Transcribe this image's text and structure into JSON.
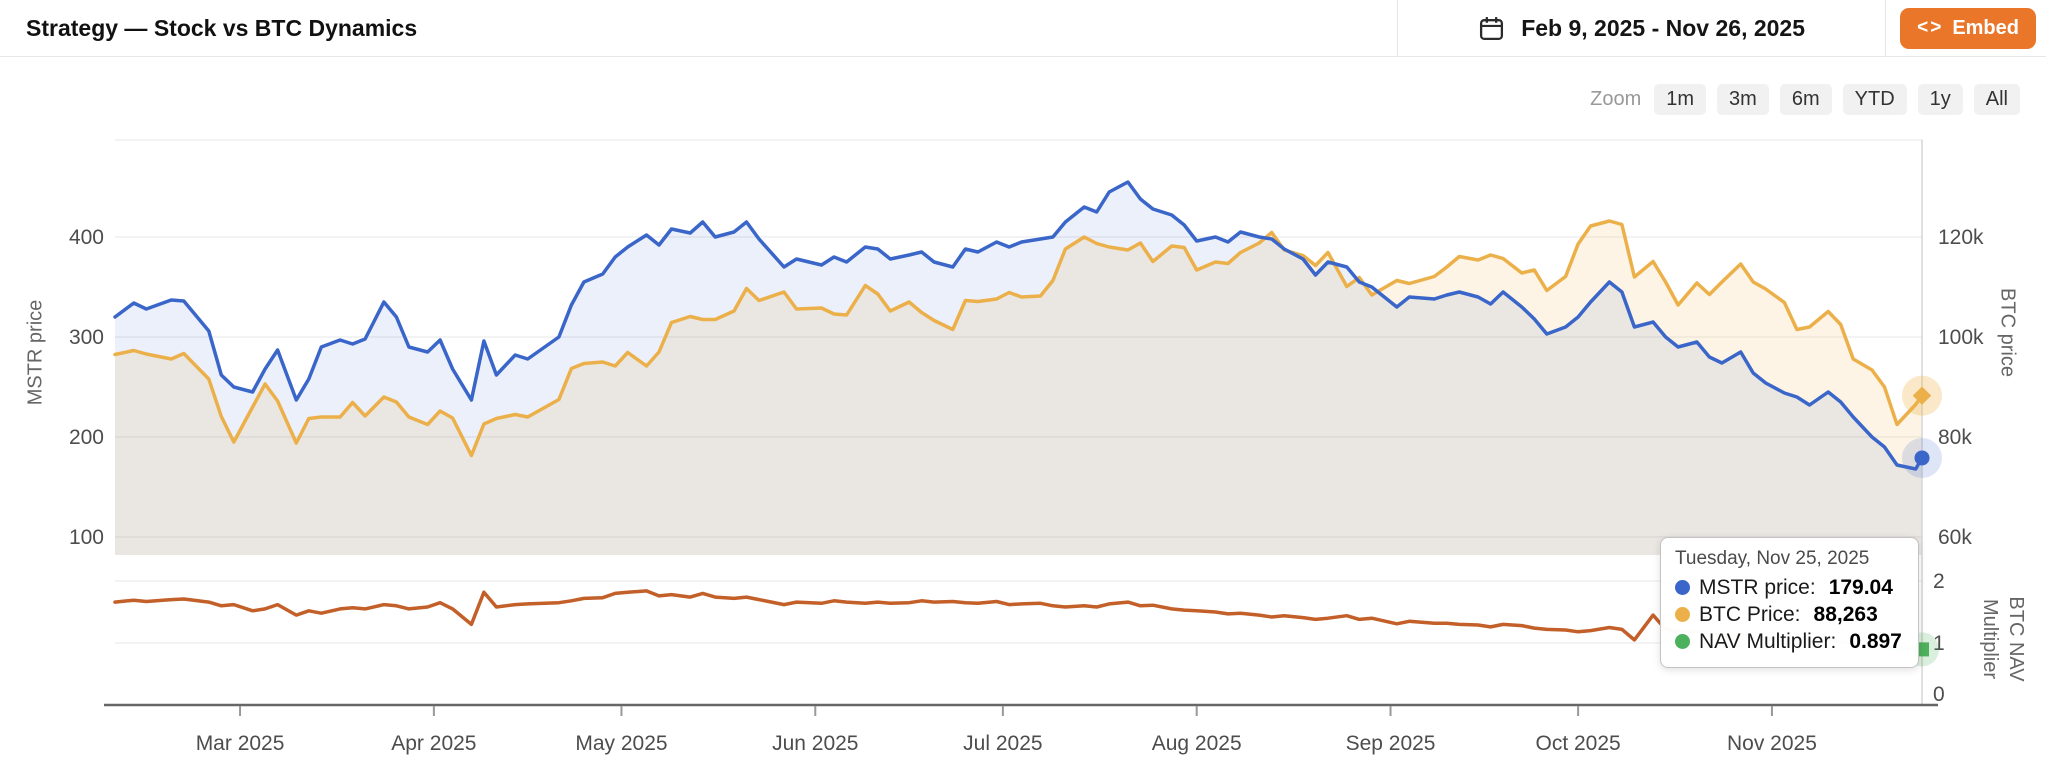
{
  "header": {
    "title": "Strategy — Stock vs BTC Dynamics",
    "date_range": "Feb 9, 2025 - Nov 26, 2025",
    "embed_label": "Embed",
    "embed_icon": "<>",
    "embed_color": "#EA762A"
  },
  "zoom_toolbar": {
    "label": "Zoom",
    "buttons": [
      "1m",
      "3m",
      "6m",
      "YTD",
      "1y",
      "All"
    ]
  },
  "tooltip": {
    "date": "Tuesday, Nov 25, 2025",
    "rows": [
      {
        "label": "MSTR price:",
        "value": "179.04",
        "color": "#3a66c9"
      },
      {
        "label": "BTC Price:",
        "value": "88,263",
        "color": "#ecb04a"
      },
      {
        "label": "NAV Multiplier:",
        "value": "0.897",
        "color": "#4db05c"
      }
    ]
  },
  "chart_data": {
    "type": "line",
    "title": "Strategy — Stock vs BTC Dynamics",
    "grid": true,
    "legend_position": "none",
    "x_range": [
      "2025-02-09",
      "2025-11-26"
    ],
    "x_ticks": [
      {
        "date": "2025-03-01",
        "label": "Mar 2025"
      },
      {
        "date": "2025-04-01",
        "label": "Apr 2025"
      },
      {
        "date": "2025-05-01",
        "label": "May 2025"
      },
      {
        "date": "2025-06-01",
        "label": "Jun 2025"
      },
      {
        "date": "2025-07-01",
        "label": "Jul 2025"
      },
      {
        "date": "2025-08-01",
        "label": "Aug 2025"
      },
      {
        "date": "2025-09-01",
        "label": "Sep 2025"
      },
      {
        "date": "2025-10-01",
        "label": "Oct 2025"
      },
      {
        "date": "2025-11-01",
        "label": "Nov 2025"
      }
    ],
    "axes": {
      "mstr": {
        "title": "MSTR price",
        "side": "left",
        "ticks": [
          {
            "v": 400,
            "label": "400"
          },
          {
            "v": 300,
            "label": "300"
          },
          {
            "v": 200,
            "label": "200"
          },
          {
            "v": 100,
            "label": "100"
          }
        ],
        "ylim": [
          85,
          500
        ]
      },
      "btc": {
        "title": "BTC price",
        "side": "right",
        "ticks": [
          {
            "v": 120000,
            "label": "120k"
          },
          {
            "v": 100000,
            "label": "100k"
          },
          {
            "v": 80000,
            "label": "80k"
          },
          {
            "v": 60000,
            "label": "60k"
          }
        ],
        "ylim": [
          56400,
          139400
        ]
      },
      "nav": {
        "title": "BTC NAV Multiplier",
        "side": "right",
        "ticks": [
          {
            "v": 2,
            "label": "2"
          },
          {
            "v": 1,
            "label": "1"
          },
          {
            "v": 0,
            "label": "0"
          }
        ],
        "ylim": [
          0,
          2.4
        ]
      }
    },
    "x": [
      "2025-02-09",
      "2025-02-12",
      "2025-02-14",
      "2025-02-18",
      "2025-02-20",
      "2025-02-24",
      "2025-02-26",
      "2025-02-28",
      "2025-03-03",
      "2025-03-05",
      "2025-03-07",
      "2025-03-10",
      "2025-03-12",
      "2025-03-14",
      "2025-03-17",
      "2025-03-19",
      "2025-03-21",
      "2025-03-24",
      "2025-03-26",
      "2025-03-28",
      "2025-03-31",
      "2025-04-02",
      "2025-04-04",
      "2025-04-07",
      "2025-04-09",
      "2025-04-11",
      "2025-04-14",
      "2025-04-16",
      "2025-04-21",
      "2025-04-23",
      "2025-04-25",
      "2025-04-28",
      "2025-04-30",
      "2025-05-02",
      "2025-05-05",
      "2025-05-07",
      "2025-05-09",
      "2025-05-12",
      "2025-05-14",
      "2025-05-16",
      "2025-05-19",
      "2025-05-21",
      "2025-05-23",
      "2025-05-27",
      "2025-05-29",
      "2025-06-02",
      "2025-06-04",
      "2025-06-06",
      "2025-06-09",
      "2025-06-11",
      "2025-06-13",
      "2025-06-16",
      "2025-06-18",
      "2025-06-20",
      "2025-06-23",
      "2025-06-25",
      "2025-06-27",
      "2025-06-30",
      "2025-07-02",
      "2025-07-04",
      "2025-07-07",
      "2025-07-09",
      "2025-07-11",
      "2025-07-14",
      "2025-07-16",
      "2025-07-18",
      "2025-07-21",
      "2025-07-23",
      "2025-07-25",
      "2025-07-28",
      "2025-07-30",
      "2025-08-01",
      "2025-08-04",
      "2025-08-06",
      "2025-08-08",
      "2025-08-11",
      "2025-08-13",
      "2025-08-15",
      "2025-08-18",
      "2025-08-20",
      "2025-08-22",
      "2025-08-25",
      "2025-08-27",
      "2025-08-29",
      "2025-09-02",
      "2025-09-04",
      "2025-09-08",
      "2025-09-10",
      "2025-09-12",
      "2025-09-15",
      "2025-09-17",
      "2025-09-19",
      "2025-09-22",
      "2025-09-24",
      "2025-09-26",
      "2025-09-29",
      "2025-10-01",
      "2025-10-03",
      "2025-10-06",
      "2025-10-08",
      "2025-10-10",
      "2025-10-13",
      "2025-10-15",
      "2025-10-17",
      "2025-10-20",
      "2025-10-22",
      "2025-10-24",
      "2025-10-27",
      "2025-10-29",
      "2025-10-31",
      "2025-11-03",
      "2025-11-05",
      "2025-11-07",
      "2025-11-10",
      "2025-11-12",
      "2025-11-14",
      "2025-11-17",
      "2025-11-19",
      "2025-11-21",
      "2025-11-24",
      "2025-11-25"
    ],
    "series": [
      {
        "name": "MSTR price",
        "axis": "mstr",
        "color": "#3a66c9",
        "fill": "rgba(70,110,205,0.10)",
        "last_marker": "circle",
        "values": [
          320,
          334,
          328,
          337,
          336,
          306,
          262,
          250,
          245,
          268,
          287,
          237,
          258,
          290,
          297,
          293,
          298,
          335,
          320,
          290,
          285,
          297,
          268,
          237,
          296,
          262,
          282,
          278,
          300,
          332,
          355,
          363,
          380,
          390,
          402,
          392,
          408,
          404,
          415,
          400,
          405,
          415,
          398,
          370,
          378,
          372,
          380,
          375,
          390,
          388,
          378,
          382,
          385,
          375,
          370,
          388,
          385,
          395,
          390,
          395,
          398,
          400,
          415,
          430,
          425,
          445,
          455,
          438,
          428,
          422,
          412,
          396,
          400,
          395,
          405,
          400,
          398,
          388,
          378,
          362,
          375,
          370,
          355,
          350,
          330,
          340,
          338,
          342,
          345,
          340,
          333,
          345,
          330,
          318,
          303,
          310,
          320,
          335,
          355,
          345,
          310,
          315,
          300,
          290,
          295,
          280,
          274,
          285,
          264,
          254,
          244,
          240,
          232,
          245,
          235,
          220,
          200,
          190,
          172,
          168,
          179.04
        ]
      },
      {
        "name": "BTC Price",
        "axis": "btc",
        "color": "#ecb04a",
        "fill": "rgba(238,180,74,0.14)",
        "last_marker": "diamond",
        "values": [
          96500,
          97300,
          96600,
          95600,
          96700,
          91600,
          84100,
          79000,
          86000,
          90600,
          87200,
          78800,
          83700,
          84000,
          84000,
          86900,
          84200,
          88000,
          87000,
          84000,
          82500,
          85200,
          83800,
          76300,
          82600,
          83700,
          84500,
          84000,
          87500,
          93700,
          94700,
          95000,
          94200,
          96900,
          94200,
          97000,
          102900,
          104100,
          103500,
          103500,
          105200,
          109700,
          107300,
          109000,
          105600,
          105800,
          104600,
          104400,
          110300,
          108600,
          105200,
          107000,
          104900,
          103300,
          101500,
          107300,
          107100,
          107600,
          108900,
          108000,
          108200,
          111300,
          117600,
          120000,
          118700,
          118000,
          117400,
          118800,
          115100,
          118200,
          117900,
          113400,
          115000,
          114700,
          116900,
          118800,
          120900,
          117400,
          116300,
          114300,
          116900,
          110100,
          111900,
          108400,
          111300,
          110700,
          112100,
          114000,
          116100,
          115400,
          116400,
          115700,
          112800,
          113400,
          109300,
          112100,
          118600,
          122200,
          123200,
          122500,
          112000,
          115100,
          111000,
          106400,
          110800,
          108500,
          111000,
          114600,
          111000,
          109600,
          106900,
          101500,
          102000,
          105100,
          102500,
          95600,
          93400,
          90000,
          82500,
          86500,
          88263
        ]
      },
      {
        "name": "NAV Multiplier",
        "axis": "nav",
        "color": "#c35f28",
        "color_below_1": "#4db05c",
        "last_marker": "square",
        "values": [
          1.66,
          1.69,
          1.67,
          1.7,
          1.71,
          1.66,
          1.6,
          1.62,
          1.52,
          1.55,
          1.62,
          1.45,
          1.52,
          1.48,
          1.55,
          1.57,
          1.55,
          1.62,
          1.6,
          1.55,
          1.58,
          1.65,
          1.55,
          1.3,
          1.82,
          1.58,
          1.62,
          1.63,
          1.65,
          1.68,
          1.72,
          1.73,
          1.8,
          1.82,
          1.84,
          1.76,
          1.78,
          1.74,
          1.8,
          1.74,
          1.72,
          1.74,
          1.7,
          1.62,
          1.66,
          1.64,
          1.68,
          1.66,
          1.64,
          1.66,
          1.64,
          1.65,
          1.68,
          1.66,
          1.67,
          1.65,
          1.64,
          1.67,
          1.62,
          1.63,
          1.64,
          1.6,
          1.58,
          1.6,
          1.58,
          1.63,
          1.66,
          1.6,
          1.61,
          1.55,
          1.53,
          1.52,
          1.5,
          1.47,
          1.48,
          1.45,
          1.42,
          1.44,
          1.41,
          1.38,
          1.4,
          1.44,
          1.38,
          1.4,
          1.31,
          1.35,
          1.32,
          1.32,
          1.3,
          1.29,
          1.26,
          1.3,
          1.28,
          1.24,
          1.22,
          1.21,
          1.18,
          1.2,
          1.25,
          1.22,
          1.05,
          1.45,
          1.22,
          1.2,
          1.18,
          1.16,
          1.12,
          1.13,
          1.1,
          1.07,
          1.05,
          1.08,
          1.04,
          1.06,
          1.02,
          0.98,
          0.96,
          0.93,
          0.89,
          0.91,
          0.897
        ]
      }
    ]
  }
}
